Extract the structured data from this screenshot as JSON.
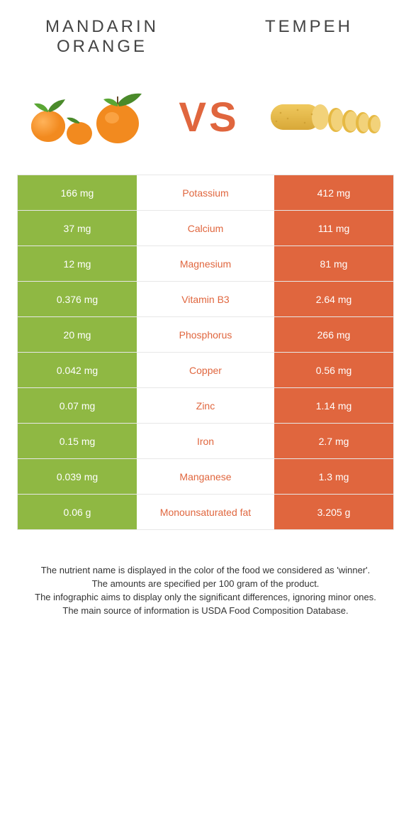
{
  "colors": {
    "left": "#8fb843",
    "right": "#e0663e",
    "nutrient_text_winner_left": "#8fb843",
    "nutrient_text_winner_right": "#e0663e",
    "vs": "#e0663e",
    "border": "#e7e7e7",
    "bg": "#ffffff"
  },
  "typography": {
    "header_fontsize": 24,
    "header_letterspacing": 4,
    "vs_fontsize": 58,
    "cell_fontsize": 14,
    "footnote_fontsize": 13
  },
  "header": {
    "left_title": "Mandarin orange",
    "right_title": "Tempeh",
    "vs_label": "VS"
  },
  "comparison": {
    "rows": [
      {
        "nutrient": "Potassium",
        "left": "166 mg",
        "right": "412 mg",
        "winner": "right"
      },
      {
        "nutrient": "Calcium",
        "left": "37 mg",
        "right": "111 mg",
        "winner": "right"
      },
      {
        "nutrient": "Magnesium",
        "left": "12 mg",
        "right": "81 mg",
        "winner": "right"
      },
      {
        "nutrient": "Vitamin B3",
        "left": "0.376 mg",
        "right": "2.64 mg",
        "winner": "right"
      },
      {
        "nutrient": "Phosphorus",
        "left": "20 mg",
        "right": "266 mg",
        "winner": "right"
      },
      {
        "nutrient": "Copper",
        "left": "0.042 mg",
        "right": "0.56 mg",
        "winner": "right"
      },
      {
        "nutrient": "Zinc",
        "left": "0.07 mg",
        "right": "1.14 mg",
        "winner": "right"
      },
      {
        "nutrient": "Iron",
        "left": "0.15 mg",
        "right": "2.7 mg",
        "winner": "right"
      },
      {
        "nutrient": "Manganese",
        "left": "0.039 mg",
        "right": "1.3 mg",
        "winner": "right"
      },
      {
        "nutrient": "Monounsaturated fat",
        "left": "0.06 g",
        "right": "3.205 g",
        "winner": "right"
      }
    ]
  },
  "footnotes": {
    "line1": "The nutrient name is displayed in the color of the food we considered as 'winner'.",
    "line2": "The amounts are specified per 100 gram of the product.",
    "line3": "The infographic aims to display only the significant differences, ignoring minor ones.",
    "line4": "The main source of information is USDA Food Composition Database."
  }
}
